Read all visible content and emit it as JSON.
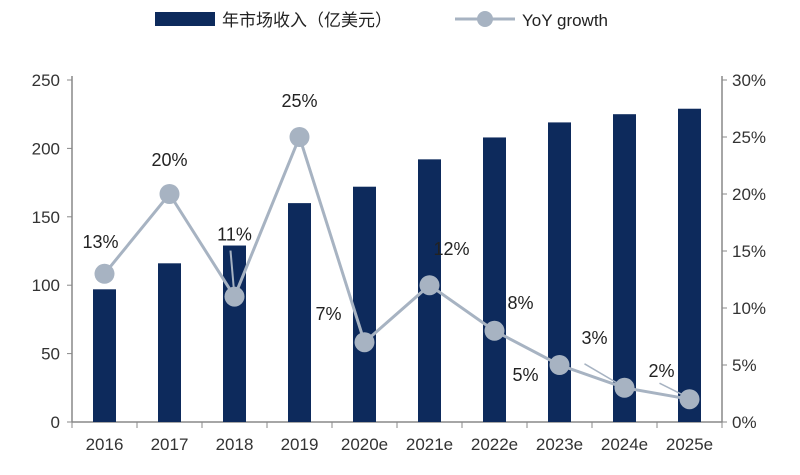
{
  "chart_data": {
    "type": "bar+line",
    "categories": [
      "2016",
      "2017",
      "2018",
      "2019",
      "2020e",
      "2021e",
      "2022e",
      "2023e",
      "2024e",
      "2025e"
    ],
    "series": [
      {
        "name": "年市场收入（亿美元）",
        "type": "bar",
        "axis": "left",
        "color": "#0d2a5c",
        "values": [
          97,
          116,
          129,
          160,
          172,
          192,
          208,
          219,
          225,
          229
        ]
      },
      {
        "name": "YoY growth",
        "type": "line",
        "axis": "right",
        "color": "#a7b3c2",
        "values": [
          13,
          20,
          11,
          25,
          7,
          12,
          8,
          5,
          3,
          2
        ],
        "labels": [
          "13%",
          "20%",
          "11%",
          "25%",
          "7%",
          "12%",
          "8%",
          "5%",
          "3%",
          "2%"
        ]
      }
    ],
    "ylim_left": [
      0,
      250
    ],
    "yticks_left": [
      "0",
      "50",
      "100",
      "150",
      "200",
      "250"
    ],
    "ylim_right": [
      0,
      30
    ],
    "yticks_right": [
      "0%",
      "5%",
      "10%",
      "15%",
      "20%",
      "25%",
      "30%"
    ],
    "grid": false,
    "legend": "top"
  }
}
